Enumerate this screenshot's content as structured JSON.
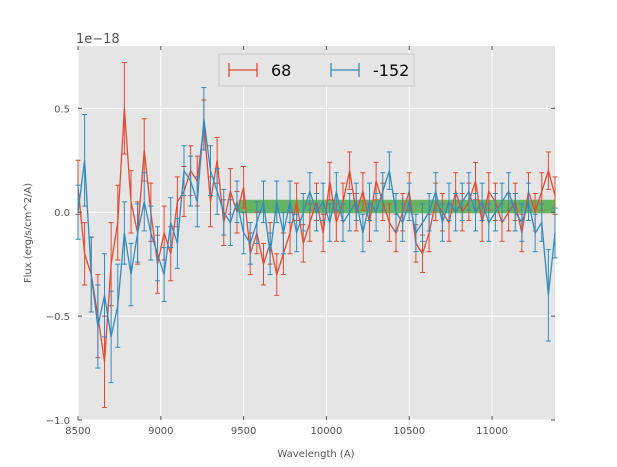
{
  "chart_data": {
    "type": "line",
    "title": "",
    "xlabel": "Wavelength (A)",
    "ylabel": "Flux (erg/s/cm^2/A)",
    "offset_text": "1e−18",
    "xlim": [
      8500,
      11380
    ],
    "ylim": [
      -1.0,
      0.8
    ],
    "x_ticks": [
      8500,
      9000,
      9500,
      10000,
      10500,
      11000
    ],
    "x_tick_labels": [
      "8500",
      "9000",
      "9500",
      "10000",
      "10500",
      "11000"
    ],
    "y_ticks": [
      -1.0,
      -0.5,
      0.0,
      0.5
    ],
    "y_tick_labels": [
      "−1.0",
      "−0.5",
      "0.0",
      "0.5"
    ],
    "grid": true,
    "legend_position": "upper center",
    "band": {
      "x_start": 9470,
      "x_end": 11380,
      "y_low": -0.005,
      "y_high": 0.06,
      "color": "#2ca02c"
    },
    "series": [
      {
        "name": "68",
        "color": "#e24a33",
        "x": [
          8500,
          8540,
          8580,
          8620,
          8660,
          8700,
          8740,
          8780,
          8820,
          8860,
          8900,
          8940,
          8980,
          9020,
          9060,
          9100,
          9140,
          9180,
          9220,
          9260,
          9300,
          9340,
          9380,
          9420,
          9460,
          9500,
          9540,
          9580,
          9620,
          9660,
          9700,
          9740,
          9780,
          9820,
          9860,
          9900,
          9940,
          9980,
          10020,
          10060,
          10100,
          10140,
          10180,
          10220,
          10260,
          10300,
          10340,
          10380,
          10420,
          10460,
          10500,
          10540,
          10580,
          10620,
          10660,
          10700,
          10740,
          10780,
          10820,
          10860,
          10900,
          10940,
          10980,
          11020,
          11060,
          11100,
          11140,
          11180,
          11220,
          11260,
          11300,
          11340,
          11380
        ],
        "y": [
          0.12,
          -0.2,
          -0.3,
          -0.5,
          -0.72,
          -0.25,
          -0.05,
          0.5,
          0.05,
          -0.1,
          0.3,
          0.0,
          -0.25,
          -0.1,
          -0.2,
          0.05,
          0.1,
          0.2,
          0.15,
          0.42,
          0.05,
          0.25,
          -0.05,
          0.1,
          0.0,
          0.12,
          -0.2,
          -0.1,
          -0.25,
          -0.15,
          -0.3,
          -0.2,
          -0.1,
          0.05,
          -0.15,
          -0.05,
          0.05,
          -0.1,
          0.15,
          -0.05,
          0.05,
          0.2,
          0.0,
          0.1,
          -0.05,
          0.15,
          0.05,
          -0.05,
          -0.1,
          0.0,
          0.1,
          -0.15,
          -0.2,
          -0.1,
          0.05,
          0.0,
          -0.05,
          0.1,
          0.0,
          0.05,
          0.15,
          -0.05,
          0.1,
          0.05,
          -0.05,
          0.0,
          0.05,
          -0.1,
          0.1,
          0.0,
          0.1,
          0.2,
          0.08
        ],
        "err": [
          0.13,
          0.15,
          0.18,
          0.2,
          0.22,
          0.2,
          0.18,
          0.22,
          0.15,
          0.15,
          0.15,
          0.14,
          0.14,
          0.13,
          0.13,
          0.12,
          0.12,
          0.12,
          0.12,
          0.12,
          0.12,
          0.11,
          0.11,
          0.11,
          0.1,
          0.1,
          0.1,
          0.1,
          0.1,
          0.1,
          0.1,
          0.1,
          0.1,
          0.09,
          0.09,
          0.09,
          0.09,
          0.09,
          0.09,
          0.09,
          0.09,
          0.09,
          0.09,
          0.09,
          0.09,
          0.09,
          0.09,
          0.09,
          0.09,
          0.09,
          0.09,
          0.09,
          0.09,
          0.09,
          0.09,
          0.09,
          0.09,
          0.09,
          0.09,
          0.09,
          0.09,
          0.09,
          0.09,
          0.09,
          0.09,
          0.09,
          0.09,
          0.09,
          0.09,
          0.09,
          0.09,
          0.09,
          0.09
        ]
      },
      {
        "name": "-152",
        "color": "#348abd",
        "x": [
          8500,
          8540,
          8580,
          8620,
          8660,
          8700,
          8740,
          8780,
          8820,
          8860,
          8900,
          8940,
          8980,
          9020,
          9060,
          9100,
          9140,
          9180,
          9220,
          9260,
          9300,
          9340,
          9380,
          9420,
          9460,
          9500,
          9540,
          9580,
          9620,
          9660,
          9700,
          9740,
          9780,
          9820,
          9860,
          9900,
          9940,
          9980,
          10020,
          10060,
          10100,
          10140,
          10180,
          10220,
          10260,
          10300,
          10340,
          10380,
          10420,
          10460,
          10500,
          10540,
          10580,
          10620,
          10660,
          10700,
          10740,
          10780,
          10820,
          10860,
          10900,
          10940,
          10980,
          11020,
          11060,
          11100,
          11140,
          11180,
          11220,
          11260,
          11300,
          11340,
          11380
        ],
        "y": [
          0.0,
          0.25,
          -0.3,
          -0.55,
          -0.4,
          -0.6,
          -0.45,
          -0.1,
          -0.3,
          -0.1,
          0.05,
          -0.1,
          -0.2,
          -0.3,
          -0.05,
          -0.15,
          0.2,
          0.15,
          0.05,
          0.45,
          0.2,
          0.1,
          0.0,
          -0.05,
          0.05,
          -0.1,
          -0.15,
          -0.05,
          0.05,
          -0.2,
          0.05,
          -0.1,
          0.05,
          -0.1,
          0.0,
          0.1,
          0.0,
          0.05,
          -0.05,
          0.1,
          -0.05,
          0.0,
          0.05,
          -0.1,
          0.05,
          0.0,
          0.1,
          0.2,
          0.0,
          -0.05,
          0.05,
          -0.1,
          -0.05,
          0.0,
          0.1,
          -0.05,
          0.05,
          0.0,
          0.05,
          0.1,
          0.0,
          0.05,
          -0.05,
          0.0,
          0.05,
          0.1,
          0.0,
          -0.05,
          0.05,
          -0.1,
          -0.05,
          -0.4,
          -0.1
        ],
        "err": [
          0.13,
          0.22,
          0.18,
          0.2,
          0.2,
          0.22,
          0.2,
          0.15,
          0.15,
          0.14,
          0.14,
          0.13,
          0.13,
          0.13,
          0.12,
          0.12,
          0.12,
          0.12,
          0.12,
          0.15,
          0.12,
          0.11,
          0.11,
          0.11,
          0.1,
          0.1,
          0.1,
          0.1,
          0.1,
          0.1,
          0.1,
          0.1,
          0.1,
          0.09,
          0.09,
          0.09,
          0.09,
          0.09,
          0.09,
          0.09,
          0.09,
          0.09,
          0.09,
          0.09,
          0.09,
          0.09,
          0.09,
          0.09,
          0.09,
          0.09,
          0.09,
          0.09,
          0.09,
          0.09,
          0.09,
          0.09,
          0.09,
          0.09,
          0.09,
          0.09,
          0.09,
          0.09,
          0.09,
          0.09,
          0.09,
          0.09,
          0.09,
          0.09,
          0.09,
          0.09,
          0.09,
          0.22,
          0.12
        ]
      }
    ]
  }
}
